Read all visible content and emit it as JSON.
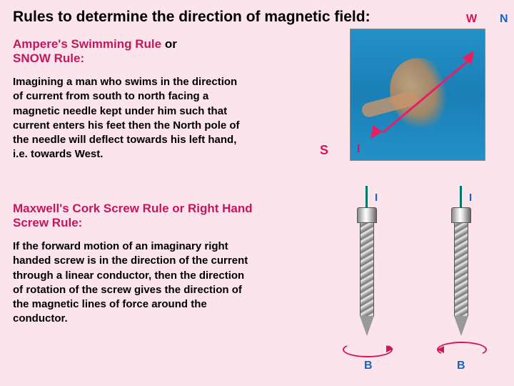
{
  "title": "Rules to determine the direction of magnetic field:",
  "rule1": {
    "heading_html": "<span style='color:#c2185b'>Ampere's Swimming Rule</span> <span style='color:#000'>or</span><br><span style='color:#c2185b'>SNOW Rule:</span>",
    "body": "Imagining a man who swims in the direction of current from south to north facing a magnetic needle kept under him such that current enters his feet then the North pole of the needle will deflect towards his left hand, i.e. towards West."
  },
  "rule2": {
    "heading": "Maxwell's Cork Screw Rule or Right Hand Screw Rule:",
    "body": "If the forward motion of an imaginary right handed screw is in the direction of the current through a linear conductor, then the direction of rotation of the screw gives the direction of the magnetic lines of force around the conductor."
  },
  "labels": {
    "W": "W",
    "N": "N",
    "S": "S",
    "I": "I",
    "B": "B"
  },
  "colors": {
    "background": "#fce4ec",
    "heading": "#c2185b",
    "arrow_pink": "#e91e63",
    "field_ring": "#d4145a",
    "current_arrow": "#00796b",
    "label_blue": "#1565c0",
    "water": "#2390c8"
  }
}
